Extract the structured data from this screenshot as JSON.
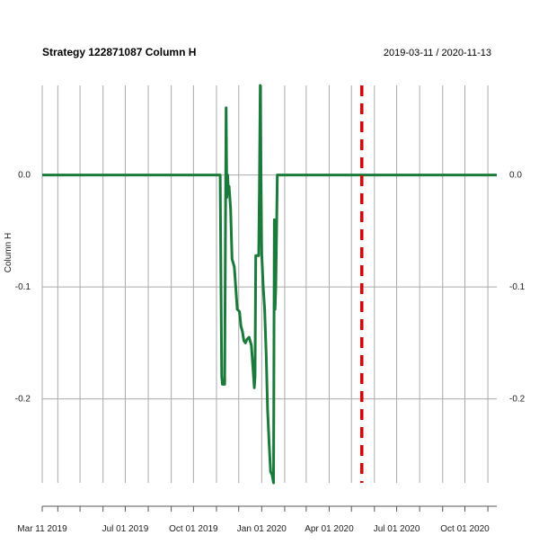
{
  "chart_data": {
    "type": "line",
    "title": "Strategy 122871087 Column H",
    "date_range": "2019-03-11 / 2020-11-13",
    "ylabel": "Column H",
    "xlabel": "",
    "xlim": [
      "2019-03-11",
      "2020-11-13"
    ],
    "ylim": [
      -0.275,
      0.08
    ],
    "x_tick_labels": [
      {
        "date": "2019-03-11",
        "label": "Mar 11 2019"
      },
      {
        "date": "2019-07-01",
        "label": "Jul 01 2019"
      },
      {
        "date": "2019-10-01",
        "label": "Oct 01 2019"
      },
      {
        "date": "2020-01-01",
        "label": "Jan 01 2020"
      },
      {
        "date": "2020-04-01",
        "label": "Apr 01 2020"
      },
      {
        "date": "2020-07-01",
        "label": "Jul 01 2020"
      },
      {
        "date": "2020-10-01",
        "label": "Oct 01 2020"
      }
    ],
    "x_minor_ticks": [
      "2019-03-11",
      "2019-04-01",
      "2019-05-01",
      "2019-06-01",
      "2019-07-01",
      "2019-08-01",
      "2019-09-01",
      "2019-10-01",
      "2019-11-01",
      "2019-12-01",
      "2020-01-01",
      "2020-02-01",
      "2020-03-01",
      "2020-04-01",
      "2020-05-01",
      "2020-06-01",
      "2020-07-01",
      "2020-08-01",
      "2020-09-01",
      "2020-10-01",
      "2020-11-01"
    ],
    "y_ticks": [
      {
        "value": 0.0,
        "label": "0.0"
      },
      {
        "value": -0.1,
        "label": "-0.1"
      },
      {
        "value": -0.2,
        "label": "-0.2"
      }
    ],
    "grid": true,
    "series": [
      {
        "color": "#1a7a3a",
        "points": [
          [
            "2019-03-11",
            0.0
          ],
          [
            "2019-11-06",
            0.0
          ],
          [
            "2019-11-07",
            -0.09
          ],
          [
            "2019-11-08",
            -0.18
          ],
          [
            "2019-11-09",
            -0.187
          ],
          [
            "2019-11-12",
            -0.187
          ],
          [
            "2019-11-13",
            -0.06
          ],
          [
            "2019-11-14",
            0.06
          ],
          [
            "2019-11-15",
            -0.02
          ],
          [
            "2019-11-16",
            0.0
          ],
          [
            "2019-11-17",
            -0.015
          ],
          [
            "2019-11-18",
            -0.01
          ],
          [
            "2019-11-20",
            -0.03
          ],
          [
            "2019-11-22",
            -0.075
          ],
          [
            "2019-11-25",
            -0.082
          ],
          [
            "2019-11-27",
            -0.1
          ],
          [
            "2019-11-29",
            -0.12
          ],
          [
            "2019-12-02",
            -0.122
          ],
          [
            "2019-12-04",
            -0.135
          ],
          [
            "2019-12-06",
            -0.14
          ],
          [
            "2019-12-08",
            -0.148
          ],
          [
            "2019-12-10",
            -0.15
          ],
          [
            "2019-12-12",
            -0.147
          ],
          [
            "2019-12-15",
            -0.145
          ],
          [
            "2019-12-18",
            -0.152
          ],
          [
            "2019-12-20",
            -0.17
          ],
          [
            "2019-12-22",
            -0.19
          ],
          [
            "2019-12-23",
            -0.18
          ],
          [
            "2019-12-24",
            -0.072
          ],
          [
            "2019-12-28",
            -0.072
          ],
          [
            "2019-12-29",
            0.0
          ],
          [
            "2019-12-30",
            0.08
          ],
          [
            "2020-01-01",
            -0.07
          ],
          [
            "2020-01-03",
            -0.1
          ],
          [
            "2020-01-05",
            -0.12
          ],
          [
            "2020-01-07",
            -0.16
          ],
          [
            "2020-01-09",
            -0.21
          ],
          [
            "2020-01-11",
            -0.24
          ],
          [
            "2020-01-13",
            -0.265
          ],
          [
            "2020-01-15",
            -0.268
          ],
          [
            "2020-01-17",
            -0.275
          ],
          [
            "2020-01-18",
            -0.04
          ],
          [
            "2020-01-19",
            -0.12
          ],
          [
            "2020-01-20",
            -0.1
          ],
          [
            "2020-01-21",
            -0.055
          ],
          [
            "2020-01-22",
            0.0
          ],
          [
            "2020-11-13",
            0.0
          ]
        ]
      }
    ],
    "annotations": [
      {
        "type": "vline",
        "date": "2020-05-15",
        "color": "#dd0000",
        "style": "dashed"
      }
    ],
    "colors": {
      "line": "#1a7a3a",
      "vline": "#dd0000",
      "grid": "#aaaaaa"
    }
  }
}
